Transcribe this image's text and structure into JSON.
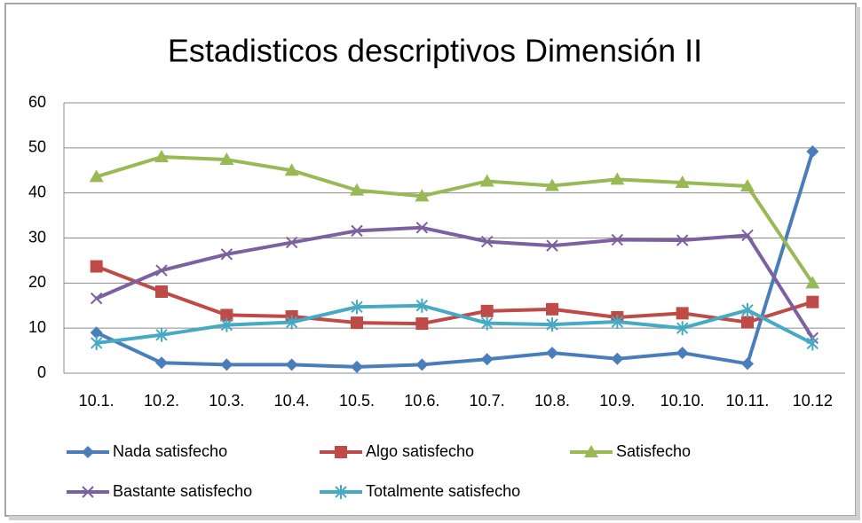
{
  "chart_data": {
    "type": "line",
    "title": "Estadisticos descriptivos Dimensión II",
    "categories": [
      "10.1.",
      "10.2.",
      "10.3.",
      "10.4.",
      "10.5.",
      "10.6.",
      "10.7.",
      "10.8.",
      "10.9.",
      "10.10.",
      "10.11.",
      "10.12"
    ],
    "ylim": [
      0,
      60
    ],
    "yticks": [
      0,
      10,
      20,
      30,
      40,
      50,
      60
    ],
    "grid": true,
    "legend": "bottom",
    "series": [
      {
        "name": "Nada satisfecho",
        "color": "#4a7ebb",
        "marker": "diamond",
        "values": [
          9,
          2.3,
          1.9,
          1.9,
          1.4,
          1.9,
          3.1,
          4.5,
          3.2,
          4.5,
          2.1,
          49.2
        ]
      },
      {
        "name": "Algo satisfecho",
        "color": "#be4b48",
        "marker": "square",
        "values": [
          23.7,
          18.1,
          12.9,
          12.6,
          11.2,
          11,
          13.8,
          14.2,
          12.4,
          13.3,
          11.3,
          15.8
        ]
      },
      {
        "name": "Satisfecho",
        "color": "#98b954",
        "marker": "triangle",
        "values": [
          43.6,
          48,
          47.4,
          45,
          40.6,
          39.3,
          42.6,
          41.6,
          43,
          42.3,
          41.5,
          20
        ]
      },
      {
        "name": "Bastante satisfecho",
        "color": "#7d60a0",
        "marker": "x",
        "values": [
          16.6,
          22.8,
          26.4,
          29,
          31.6,
          32.3,
          29.2,
          28.3,
          29.6,
          29.5,
          30.6,
          7.8
        ]
      },
      {
        "name": "Totalmente satisfecho",
        "color": "#46aac5",
        "marker": "star",
        "values": [
          6.7,
          8.5,
          10.7,
          11.3,
          14.7,
          15,
          11.1,
          10.8,
          11.4,
          10,
          14,
          6.6
        ]
      }
    ]
  }
}
